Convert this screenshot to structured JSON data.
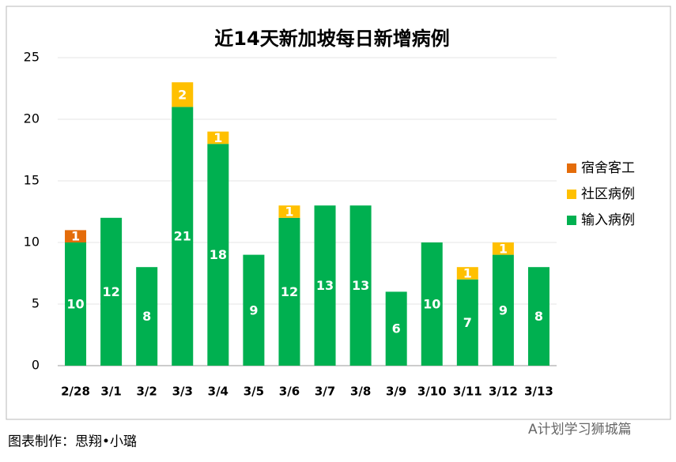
{
  "chart_data": {
    "type": "stacked_bar",
    "title": "近14天新加坡每日新增病例",
    "categories": [
      "2/28",
      "3/1",
      "3/2",
      "3/3",
      "3/4",
      "3/5",
      "3/6",
      "3/7",
      "3/8",
      "3/9",
      "3/10",
      "3/11",
      "3/12",
      "3/13"
    ],
    "series": [
      {
        "name": "输入病例",
        "color": "#00b050",
        "values": [
          10,
          12,
          8,
          21,
          18,
          9,
          12,
          13,
          13,
          6,
          10,
          7,
          9,
          8
        ]
      },
      {
        "name": "社区病例",
        "color": "#ffc000",
        "values": [
          null,
          null,
          null,
          2,
          1,
          null,
          1,
          null,
          null,
          null,
          null,
          1,
          1,
          null
        ]
      },
      {
        "name": "宿舍客工",
        "color": "#e46c0a",
        "values": [
          1,
          null,
          null,
          null,
          null,
          null,
          null,
          null,
          null,
          null,
          null,
          null,
          null,
          null
        ]
      }
    ],
    "ylim": [
      0,
      25
    ],
    "yticks": [
      0,
      5,
      10,
      15,
      20,
      25
    ],
    "grid": true,
    "legend": "right",
    "source_note": "图表制作：思翔•小璐",
    "watermark": "A计划学习狮城篇"
  }
}
